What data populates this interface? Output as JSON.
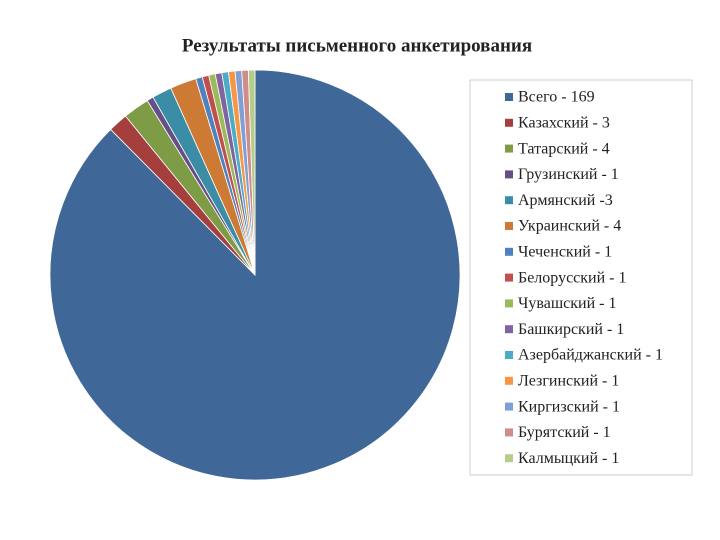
{
  "chart_data": {
    "type": "pie",
    "title": "Результаты письменного анкетирования",
    "categories": [
      "Всего - 169",
      "Казахский - 3",
      "Татарский - 4",
      "Грузинский - 1",
      "Армянский -3",
      "Украинский - 4",
      "Чеченский - 1",
      "Белорусский - 1",
      "Чувашский - 1",
      "Башкирский - 1",
      "Азербайджанский - 1",
      "Лезгинский - 1",
      "Киргизский - 1",
      "Бурятский - 1",
      "Калмыцкий - 1"
    ],
    "values": [
      169,
      3,
      4,
      1,
      3,
      4,
      1,
      1,
      1,
      1,
      1,
      1,
      1,
      1,
      1
    ],
    "colors": [
      "#3F6797",
      "#A53F3D",
      "#7E9B45",
      "#664F85",
      "#3B8DA6",
      "#CD7A34",
      "#4F81BD",
      "#C0504D",
      "#9BBB59",
      "#8064A2",
      "#4BACC6",
      "#F79646",
      "#7FA0D4",
      "#D08C8A",
      "#B6CD8A"
    ],
    "legend": "right"
  }
}
